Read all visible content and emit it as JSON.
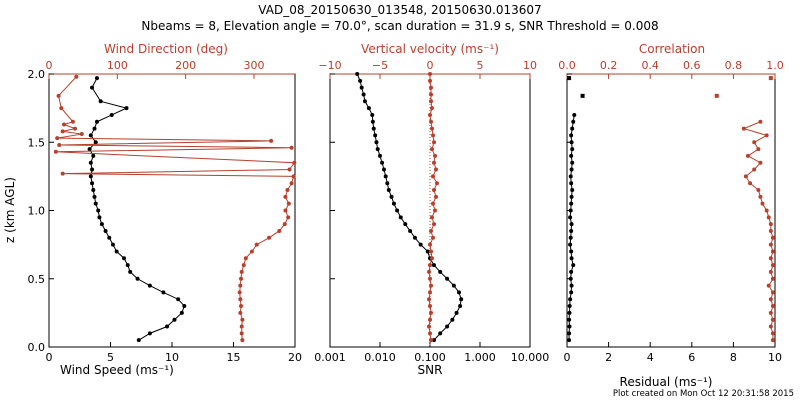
{
  "header": {
    "title1": "VAD_08_20150630_013548, 20150630.013607",
    "title2": "Nbeams = 8, Elevation angle = 70.0°, scan duration = 31.9 s, SNR Threshold = 0.008"
  },
  "footer": {
    "created": "Plot created on Mon Oct 12 20:31:58 2015"
  },
  "colors": {
    "black": "#000000",
    "red": "#b8402c"
  },
  "chart_data": [
    {
      "type": "line",
      "name": "wind-panel",
      "title": "",
      "ylabel": "z (km AGL)",
      "ylim": [
        0,
        2.0
      ],
      "yticks": [
        "0.0",
        "0.5",
        "1.0",
        "1.5",
        "2.0"
      ],
      "bottom_axis": {
        "label": "Wind Speed (ms⁻¹)",
        "range": [
          0,
          20
        ],
        "ticks": [
          "0",
          "5",
          "10",
          "15",
          "20"
        ]
      },
      "top_axis": {
        "label": "Wind Direction (deg)",
        "range": [
          0,
          360
        ],
        "ticks": [
          "0",
          "100",
          "200",
          "300"
        ]
      },
      "series": [
        {
          "name": "Wind Speed",
          "color": "#000000",
          "axis": "bottom",
          "z": [
            0.05,
            0.1,
            0.15,
            0.2,
            0.25,
            0.3,
            0.35,
            0.4,
            0.45,
            0.5,
            0.55,
            0.6,
            0.65,
            0.7,
            0.75,
            0.8,
            0.85,
            0.9,
            0.95,
            1.0,
            1.05,
            1.1,
            1.15,
            1.2,
            1.25,
            1.3,
            1.35,
            1.4,
            1.45,
            1.5,
            1.55,
            1.6,
            1.65,
            1.7,
            1.75,
            1.8,
            1.9,
            1.97
          ],
          "values": [
            7.3,
            8.2,
            9.6,
            10.2,
            10.8,
            11.0,
            10.5,
            9.3,
            8.2,
            7.2,
            6.6,
            6.4,
            6.1,
            5.5,
            5.2,
            4.9,
            4.6,
            4.3,
            4.1,
            4.0,
            3.8,
            3.7,
            3.6,
            3.5,
            3.4,
            3.5,
            3.4,
            3.6,
            3.3,
            3.8,
            3.4,
            3.7,
            3.9,
            5.1,
            6.3,
            4.2,
            3.5,
            3.9
          ]
        },
        {
          "name": "Wind Direction",
          "color": "#b8402c",
          "axis": "top",
          "z": [
            0.05,
            0.1,
            0.15,
            0.2,
            0.25,
            0.3,
            0.35,
            0.4,
            0.45,
            0.5,
            0.55,
            0.6,
            0.65,
            0.7,
            0.75,
            0.8,
            0.85,
            0.9,
            0.95,
            1.0,
            1.05,
            1.1,
            1.15,
            1.2,
            1.25,
            1.27,
            1.3,
            1.35,
            1.43,
            1.46,
            1.48,
            1.51,
            1.53,
            1.56,
            1.58,
            1.6,
            1.63,
            1.65,
            1.75,
            1.84,
            1.98
          ],
          "values": [
            283,
            282,
            282,
            283,
            280,
            281,
            280,
            279,
            280,
            281,
            282,
            285,
            288,
            297,
            304,
            322,
            337,
            345,
            350,
            346,
            351,
            346,
            349,
            355,
            358,
            20,
            352,
            359,
            10,
            355,
            15,
            325,
            12,
            48,
            20,
            38,
            22,
            35,
            18,
            14,
            40
          ]
        }
      ]
    },
    {
      "type": "line",
      "name": "snr-panel",
      "title": "",
      "ylim": [
        0,
        2.0
      ],
      "bottom_axis": {
        "label": "SNR",
        "scale": "log",
        "range": [
          0.001,
          10
        ],
        "ticks": [
          "0.001",
          "0.010",
          "0.100",
          "1.000",
          "10.000"
        ]
      },
      "top_axis": {
        "label": "Vertical velocity (ms⁻¹)",
        "range": [
          -10,
          10
        ],
        "ticks": [
          "−10",
          "−5",
          "0",
          "5",
          "10"
        ]
      },
      "series": [
        {
          "name": "SNR",
          "color": "#000000",
          "axis": "bottom",
          "z": [
            0.05,
            0.1,
            0.15,
            0.2,
            0.25,
            0.3,
            0.35,
            0.4,
            0.45,
            0.5,
            0.55,
            0.6,
            0.65,
            0.7,
            0.75,
            0.8,
            0.85,
            0.9,
            0.95,
            1.0,
            1.05,
            1.1,
            1.15,
            1.2,
            1.25,
            1.3,
            1.35,
            1.4,
            1.45,
            1.5,
            1.55,
            1.6,
            1.65,
            1.7,
            1.75,
            1.8,
            1.85,
            1.9,
            1.95,
            2.0
          ],
          "values": [
            0.12,
            0.16,
            0.22,
            0.28,
            0.34,
            0.4,
            0.42,
            0.38,
            0.3,
            0.22,
            0.16,
            0.12,
            0.1,
            0.09,
            0.065,
            0.05,
            0.04,
            0.032,
            0.026,
            0.022,
            0.019,
            0.017,
            0.015,
            0.014,
            0.013,
            0.012,
            0.011,
            0.01,
            0.009,
            0.0085,
            0.008,
            0.0075,
            0.0072,
            0.007,
            0.006,
            0.005,
            0.0047,
            0.0043,
            0.004,
            0.0035
          ]
        },
        {
          "name": "Vertical velocity",
          "color": "#b8402c",
          "axis": "top",
          "z": [
            0.05,
            0.1,
            0.15,
            0.2,
            0.25,
            0.3,
            0.35,
            0.4,
            0.45,
            0.5,
            0.55,
            0.6,
            0.65,
            0.7,
            0.75,
            0.8,
            0.85,
            0.9,
            0.95,
            1.0,
            1.05,
            1.1,
            1.15,
            1.2,
            1.25,
            1.3,
            1.35,
            1.4,
            1.45,
            1.5,
            1.55,
            1.6,
            1.65,
            1.7,
            1.75,
            1.8,
            1.85,
            1.9,
            1.95,
            2.0
          ],
          "values": [
            0.1,
            0.0,
            -0.1,
            0.0,
            0.1,
            0.0,
            -0.1,
            0.0,
            0.1,
            0.0,
            -0.1,
            0.0,
            0.2,
            0.1,
            0.0,
            0.3,
            0.1,
            0.4,
            0.2,
            0.5,
            0.3,
            0.6,
            0.4,
            0.7,
            0.3,
            0.6,
            0.4,
            0.5,
            0.2,
            0.4,
            0.3,
            0.2,
            0.1,
            0.0,
            0.2,
            0.1,
            0.1,
            0.1,
            0.0,
            0.0
          ]
        }
      ]
    },
    {
      "type": "line",
      "name": "residual-panel",
      "title": "",
      "ylim": [
        0,
        2.0
      ],
      "bottom_axis": {
        "label": "Residual (ms⁻¹)",
        "range": [
          0,
          10
        ],
        "ticks": [
          "0",
          "2",
          "4",
          "6",
          "8",
          "10"
        ]
      },
      "top_axis": {
        "label": "Correlation",
        "range": [
          0,
          1
        ],
        "ticks": [
          "0.0",
          "0.2",
          "0.4",
          "0.6",
          "0.8",
          "1.0"
        ]
      },
      "series": [
        {
          "name": "Residual",
          "color": "#000000",
          "axis": "bottom",
          "z": [
            0.05,
            0.1,
            0.15,
            0.2,
            0.25,
            0.3,
            0.35,
            0.4,
            0.45,
            0.5,
            0.55,
            0.6,
            0.65,
            0.7,
            0.75,
            0.8,
            0.85,
            0.9,
            0.95,
            1.0,
            1.05,
            1.1,
            1.15,
            1.2,
            1.25,
            1.3,
            1.35,
            1.4,
            1.45,
            1.5,
            1.55,
            1.6,
            1.65,
            1.7
          ],
          "values": [
            0.1,
            0.1,
            0.12,
            0.1,
            0.12,
            0.13,
            0.15,
            0.2,
            0.22,
            0.18,
            0.2,
            0.3,
            0.22,
            0.2,
            0.15,
            0.18,
            0.2,
            0.22,
            0.15,
            0.18,
            0.2,
            0.22,
            0.25,
            0.2,
            0.18,
            0.22,
            0.25,
            0.2,
            0.25,
            0.22,
            0.2,
            0.25,
            0.3,
            0.35
          ]
        },
        {
          "name": "Residual (isolated)",
          "color": "#000000",
          "axis": "bottom",
          "style": "square",
          "z": [
            1.84,
            1.97
          ],
          "values": [
            0.75,
            0.1
          ]
        },
        {
          "name": "Correlation",
          "color": "#b8402c",
          "axis": "top",
          "z": [
            0.05,
            0.1,
            0.15,
            0.2,
            0.25,
            0.3,
            0.35,
            0.4,
            0.45,
            0.5,
            0.55,
            0.6,
            0.65,
            0.7,
            0.75,
            0.8,
            0.85,
            0.9,
            0.95,
            1.0,
            1.05,
            1.1,
            1.15,
            1.2,
            1.25,
            1.3,
            1.35,
            1.4,
            1.45,
            1.5,
            1.55,
            1.6,
            1.65
          ],
          "values": [
            0.99,
            0.99,
            0.98,
            0.99,
            0.98,
            0.99,
            0.98,
            0.99,
            0.97,
            0.99,
            0.98,
            0.99,
            0.98,
            0.99,
            0.98,
            0.99,
            0.98,
            0.98,
            0.97,
            0.96,
            0.94,
            0.93,
            0.92,
            0.88,
            0.86,
            0.9,
            0.93,
            0.87,
            0.92,
            0.9,
            0.96,
            0.85,
            0.93
          ]
        },
        {
          "name": "Correlation (isolated)",
          "color": "#b8402c",
          "axis": "top",
          "style": "square",
          "z": [
            1.84,
            1.97
          ],
          "values": [
            0.72,
            0.98
          ]
        }
      ]
    }
  ]
}
